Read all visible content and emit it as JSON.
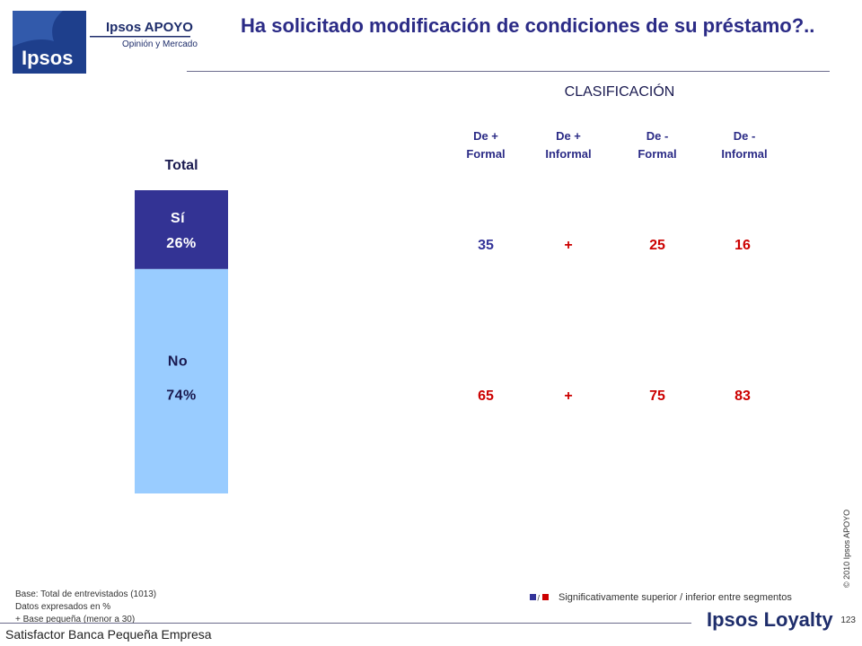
{
  "logo": {
    "brand": "Ipsos",
    "name": "Ipsos APOYO",
    "tagline": "Opinión y Mercado"
  },
  "title": "Ha solicitado modificación de condiciones de su préstamo?..",
  "colors": {
    "navy": "#333394",
    "light_blue": "#99ccff",
    "blue_text": "#333399",
    "red": "#cc0000",
    "title": "#2b2b86"
  },
  "chart_data": {
    "type": "bar",
    "stacked": true,
    "title": "Total",
    "categories": [
      "Total"
    ],
    "series": [
      {
        "name": "Sí",
        "values": [
          26
        ],
        "label": "26%",
        "color": "#333394"
      },
      {
        "name": "No",
        "values": [
          74
        ],
        "label": "74%",
        "color": "#99ccff"
      }
    ],
    "ylim": [
      0,
      100
    ]
  },
  "classification": {
    "title": "CLASIFICACIÓN",
    "columns": [
      {
        "line1": "De +",
        "line2": "Formal"
      },
      {
        "line1": "De +",
        "line2": "Informal"
      },
      {
        "line1": "De -",
        "line2": "Formal"
      },
      {
        "line1": "De  -",
        "line2": "Informal"
      }
    ],
    "rows": [
      {
        "category": "Sí",
        "cells": [
          {
            "text": "35",
            "color": "#333399"
          },
          {
            "text": "+",
            "color": "#cc0000"
          },
          {
            "text": "25",
            "color": "#cc0000"
          },
          {
            "text": "16",
            "color": "#cc0000"
          }
        ]
      },
      {
        "category": "No",
        "cells": [
          {
            "text": "65",
            "color": "#cc0000"
          },
          {
            "text": "+",
            "color": "#cc0000"
          },
          {
            "text": "75",
            "color": "#cc0000"
          },
          {
            "text": "83",
            "color": "#cc0000"
          }
        ]
      }
    ]
  },
  "notes": [
    "Base: Total de entrevistados (1013)",
    "Datos expresados en %",
    "+ Base pequeña (menor a 30)"
  ],
  "legend": {
    "text": "Significativamente superior / inferior entre segmentos",
    "colors": [
      "#333399",
      "#cc0000"
    ]
  },
  "footer": {
    "study": "Satisfactor Banca Pequeña Empresa",
    "brand": "Ipsos Loyalty",
    "page": "123",
    "copyright": "© 2010 Ipsos APOYO"
  }
}
